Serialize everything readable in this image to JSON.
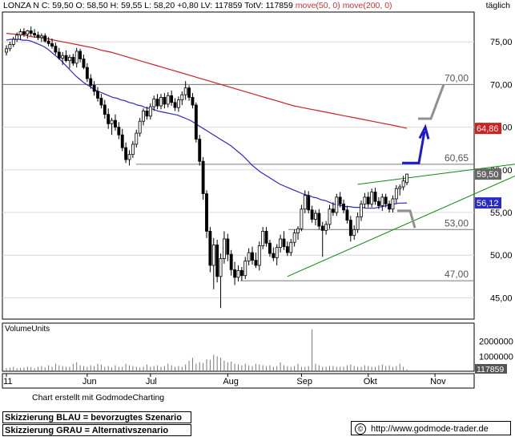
{
  "header": {
    "left": "LONZA N C: 59,50 O: 58,50 H: 59,55 L: 58,20 +0,80 LV: 117859 TotV: 117859",
    "ma_text": "move(50, 0) move(200, 0)",
    "right": "täglich"
  },
  "footer": {
    "credit": "Chart erstellt mit GodmodeCharting",
    "blue_note": "Skizzierung BLAU = bevorzugtes Szenario",
    "grey_note": "Skizzierung GRAU = Alternativszenario",
    "copyright_symbol": "©",
    "url": "http://www.godmode-trader.de"
  },
  "colors": {
    "candles": "#000000",
    "ma50": "#2a2ac8",
    "ma200": "#cc2222",
    "trendlines": "#118811",
    "blue_scenario": "#1a1ad0",
    "grey_scenario": "#909090",
    "price_badge": "#666666",
    "ma200_badge": "#cc2222",
    "ma50_badge": "#2a2ac8"
  },
  "chart_data": {
    "type": "candlestick",
    "x_ticks": [
      "'11",
      "Jun",
      "Jul",
      "Aug",
      "Sep",
      "Okt",
      "Nov"
    ],
    "y_ticks": [
      45,
      50,
      55,
      60,
      65,
      70,
      75
    ],
    "y_tick_labels": [
      "45,00",
      "50,00",
      "55,00",
      "60,00",
      "65,00",
      "70,00",
      "75,00"
    ],
    "ylim": [
      42.5,
      78.5
    ],
    "levels": [
      {
        "value": 70.0,
        "label": "70,00"
      },
      {
        "value": 60.65,
        "label": "60,65"
      },
      {
        "value": 53.0,
        "label": "53,00"
      },
      {
        "value": 47.0,
        "label": "47,00"
      }
    ],
    "last_values": [
      {
        "name": "close",
        "value": 59.5,
        "label": "59,50"
      },
      {
        "name": "ma200",
        "value": 64.86,
        "label": "64,86"
      },
      {
        "name": "ma50",
        "value": 56.12,
        "label": "56,12"
      }
    ],
    "ohlc": [
      [
        73.8,
        74.6,
        73.4,
        74.2
      ],
      [
        74.2,
        75.0,
        73.9,
        74.7
      ],
      [
        74.7,
        75.6,
        74.4,
        75.3
      ],
      [
        75.3,
        76.1,
        75.0,
        75.8
      ],
      [
        75.8,
        76.5,
        75.3,
        76.2
      ],
      [
        76.2,
        76.6,
        75.6,
        75.9
      ],
      [
        75.9,
        76.4,
        75.4,
        76.3
      ],
      [
        76.3,
        76.8,
        75.7,
        76.0
      ],
      [
        76.0,
        76.5,
        75.5,
        75.8
      ],
      [
        75.8,
        76.2,
        75.2,
        75.5
      ],
      [
        75.5,
        76.0,
        75.0,
        75.7
      ],
      [
        75.7,
        76.0,
        74.9,
        75.1
      ],
      [
        75.1,
        75.6,
        74.5,
        74.8
      ],
      [
        74.8,
        75.4,
        74.2,
        74.5
      ],
      [
        74.5,
        74.9,
        73.5,
        73.8
      ],
      [
        73.8,
        74.3,
        72.9,
        73.1
      ],
      [
        73.1,
        73.8,
        72.3,
        73.4
      ],
      [
        73.4,
        74.0,
        72.6,
        72.8
      ],
      [
        72.8,
        73.5,
        71.9,
        73.2
      ],
      [
        73.2,
        73.6,
        72.2,
        72.5
      ],
      [
        72.5,
        74.3,
        72.0,
        73.9
      ],
      [
        73.9,
        74.2,
        72.6,
        73.0
      ],
      [
        73.0,
        73.5,
        71.8,
        72.0
      ],
      [
        72.0,
        72.5,
        70.3,
        70.7
      ],
      [
        70.7,
        71.2,
        69.5,
        69.9
      ],
      [
        69.9,
        70.4,
        68.7,
        69.2
      ],
      [
        69.2,
        69.7,
        68.0,
        68.4
      ],
      [
        68.4,
        68.9,
        67.2,
        67.6
      ],
      [
        67.6,
        68.2,
        66.0,
        66.5
      ],
      [
        66.5,
        67.2,
        64.8,
        65.4
      ],
      [
        65.4,
        66.1,
        64.1,
        65.8
      ],
      [
        65.8,
        66.5,
        64.6,
        65.0
      ],
      [
        65.0,
        65.6,
        63.6,
        64.1
      ],
      [
        64.1,
        64.8,
        62.2,
        62.6
      ],
      [
        62.6,
        63.2,
        60.8,
        61.2
      ],
      [
        61.2,
        62.3,
        60.5,
        61.8
      ],
      [
        61.8,
        63.4,
        61.4,
        63.0
      ],
      [
        63.0,
        64.7,
        62.6,
        64.3
      ],
      [
        64.3,
        66.1,
        63.9,
        65.7
      ],
      [
        65.7,
        67.2,
        65.2,
        66.9
      ],
      [
        66.9,
        67.4,
        65.9,
        66.3
      ],
      [
        66.3,
        67.8,
        65.9,
        67.4
      ],
      [
        67.4,
        68.7,
        66.9,
        68.3
      ],
      [
        68.3,
        68.9,
        67.1,
        67.5
      ],
      [
        67.5,
        68.9,
        67.1,
        68.5
      ],
      [
        68.5,
        69.0,
        67.2,
        67.7
      ],
      [
        67.7,
        69.1,
        67.3,
        68.7
      ],
      [
        68.7,
        69.3,
        67.5,
        67.9
      ],
      [
        67.9,
        68.4,
        66.9,
        67.3
      ],
      [
        67.3,
        68.6,
        66.8,
        68.2
      ],
      [
        68.2,
        69.2,
        67.6,
        68.8
      ],
      [
        68.8,
        70.4,
        68.2,
        69.6
      ],
      [
        69.6,
        69.9,
        68.1,
        68.5
      ],
      [
        68.5,
        69.0,
        67.2,
        67.6
      ],
      [
        67.6,
        67.9,
        63.2,
        63.6
      ],
      [
        63.6,
        64.1,
        60.5,
        61.0
      ],
      [
        61.0,
        61.5,
        56.5,
        57.2
      ],
      [
        57.2,
        57.6,
        52.0,
        52.8
      ],
      [
        52.8,
        53.3,
        48.0,
        48.8
      ],
      [
        48.8,
        52.0,
        46.0,
        51.2
      ],
      [
        51.2,
        51.8,
        46.8,
        47.5
      ],
      [
        47.5,
        50.2,
        43.8,
        49.6
      ],
      [
        49.6,
        52.8,
        49.0,
        51.9
      ],
      [
        51.9,
        52.5,
        49.3,
        50.1
      ],
      [
        50.1,
        50.6,
        47.6,
        48.3
      ],
      [
        48.3,
        49.2,
        46.5,
        47.4
      ],
      [
        47.4,
        48.8,
        46.9,
        48.2
      ],
      [
        48.2,
        48.6,
        47.0,
        47.6
      ],
      [
        47.6,
        49.8,
        47.2,
        49.3
      ],
      [
        49.3,
        50.8,
        48.8,
        50.3
      ],
      [
        50.3,
        51.0,
        48.9,
        49.4
      ],
      [
        49.4,
        50.3,
        48.5,
        48.8
      ],
      [
        48.8,
        51.6,
        48.2,
        51.1
      ],
      [
        51.1,
        53.3,
        50.7,
        52.8
      ],
      [
        52.8,
        53.3,
        51.0,
        51.4
      ],
      [
        51.4,
        51.8,
        49.8,
        50.2
      ],
      [
        50.2,
        50.9,
        49.3,
        49.7
      ],
      [
        49.7,
        51.3,
        48.8,
        50.9
      ],
      [
        50.9,
        52.4,
        50.3,
        51.9
      ],
      [
        51.9,
        52.8,
        50.6,
        51.0
      ],
      [
        51.0,
        51.6,
        49.9,
        50.3
      ],
      [
        50.3,
        51.9,
        49.9,
        51.5
      ],
      [
        51.5,
        53.0,
        51.0,
        52.6
      ],
      [
        52.6,
        53.4,
        51.8,
        53.1
      ],
      [
        53.1,
        55.9,
        52.8,
        55.4
      ],
      [
        55.4,
        57.6,
        54.9,
        57.0
      ],
      [
        57.0,
        57.5,
        54.9,
        55.3
      ],
      [
        55.3,
        55.8,
        53.8,
        54.2
      ],
      [
        54.2,
        55.3,
        53.5,
        54.9
      ],
      [
        54.9,
        55.4,
        53.0,
        53.4
      ],
      [
        53.4,
        53.9,
        49.8,
        52.9
      ],
      [
        52.9,
        54.0,
        52.4,
        53.6
      ],
      [
        53.6,
        55.9,
        53.1,
        55.4
      ],
      [
        55.4,
        56.2,
        54.6,
        55.0
      ],
      [
        55.0,
        57.2,
        54.6,
        56.8
      ],
      [
        56.8,
        57.4,
        55.6,
        56.0
      ],
      [
        56.0,
        56.5,
        54.9,
        55.3
      ],
      [
        55.3,
        55.8,
        53.7,
        54.1
      ],
      [
        54.1,
        54.6,
        51.6,
        52.3
      ],
      [
        52.3,
        53.5,
        51.8,
        53.0
      ],
      [
        53.0,
        55.0,
        52.6,
        54.5
      ],
      [
        54.5,
        56.4,
        54.0,
        56.0
      ],
      [
        56.0,
        57.3,
        55.5,
        56.8
      ],
      [
        56.8,
        57.4,
        55.6,
        56.0
      ],
      [
        56.0,
        57.8,
        55.6,
        57.4
      ],
      [
        57.4,
        57.9,
        55.9,
        56.3
      ],
      [
        56.3,
        56.8,
        55.4,
        55.8
      ],
      [
        55.8,
        57.2,
        55.2,
        56.8
      ],
      [
        56.8,
        57.2,
        55.6,
        56.0
      ],
      [
        56.0,
        56.4,
        55.0,
        55.4
      ],
      [
        55.4,
        57.0,
        55.0,
        56.6
      ],
      [
        56.6,
        58.2,
        56.1,
        57.8
      ],
      [
        57.8,
        58.3,
        57.0,
        58.0
      ],
      [
        58.0,
        59.3,
        57.6,
        58.7
      ],
      [
        58.5,
        59.55,
        58.2,
        59.5
      ]
    ],
    "ma50": [
      75.2,
      75.3,
      75.3,
      75.3,
      75.2,
      75.2,
      75.1,
      74.9,
      74.7,
      74.5,
      74.2,
      73.8,
      73.4,
      73.0,
      72.5,
      72.0,
      71.5,
      71.0,
      70.6,
      70.2,
      69.9,
      69.6,
      69.3,
      69.1,
      68.9,
      68.7,
      68.5,
      68.4,
      68.2,
      68.1,
      67.9,
      67.8,
      67.6,
      67.5,
      67.3,
      67.2,
      67.1,
      66.9,
      66.8,
      66.7,
      66.6,
      66.5,
      66.4,
      66.2,
      66.0,
      65.8,
      65.5,
      65.2,
      64.9,
      64.6,
      64.3,
      64.0,
      63.7,
      63.4,
      63.1,
      62.8,
      62.4,
      62.0,
      61.6,
      61.1,
      60.6,
      60.2,
      59.8,
      59.5,
      59.2,
      58.9,
      58.6,
      58.3,
      58.1,
      57.9,
      57.7,
      57.5,
      57.3,
      57.1,
      57.0,
      56.8,
      56.7,
      56.5,
      56.4,
      56.2,
      56.0,
      55.9,
      55.8,
      55.7,
      55.7,
      55.6,
      55.6,
      55.6,
      55.5,
      55.5,
      55.5,
      55.6,
      55.7,
      55.8,
      55.9,
      56.0,
      56.1,
      56.1,
      56.12
    ],
    "ma200": [
      76.0,
      75.9,
      75.8,
      75.6,
      75.5,
      75.3,
      75.1,
      74.9,
      74.7,
      74.5,
      74.3,
      74.0,
      73.8,
      73.5,
      73.2,
      72.9,
      72.6,
      72.3,
      72.0,
      71.7,
      71.4,
      71.1,
      70.8,
      70.5,
      70.2,
      69.9,
      69.6,
      69.3,
      69.0,
      68.7,
      68.4,
      68.1,
      67.8,
      67.5,
      67.3,
      67.1,
      66.9,
      66.7,
      66.5,
      66.3,
      66.1,
      65.9,
      65.7,
      65.5,
      65.3,
      65.1,
      64.86
    ],
    "trend_upper": {
      "x": [
        100,
        155
      ],
      "y": [
        58.3,
        61.2
      ]
    },
    "trend_lower": {
      "x": [
        80,
        157
      ],
      "y": [
        47.5,
        61.5
      ]
    },
    "volume": {
      "label": "VolumeUnits",
      "y_tick_labels": [
        "2000000",
        "1000000"
      ],
      "last_label": "117859",
      "values": [
        0.2,
        0.25,
        0.3,
        0.2,
        0.22,
        0.25,
        0.3,
        0.28,
        0.2,
        0.3,
        0.35,
        0.25,
        0.4,
        0.3,
        0.5,
        0.4,
        0.35,
        0.3,
        0.3,
        0.5,
        0.6,
        0.4,
        0.35,
        0.3,
        0.4,
        0.35,
        0.5,
        0.45,
        0.3,
        0.35,
        0.25,
        0.4,
        0.3,
        0.3,
        0.5,
        0.4,
        0.35,
        0.3,
        0.25,
        0.3,
        0.45,
        0.3,
        0.35,
        0.4,
        0.3,
        0.35,
        0.5,
        0.4,
        0.3,
        0.35,
        0.3,
        0.45,
        0.7,
        0.9,
        0.5,
        0.6,
        0.55,
        0.8,
        0.75,
        1.1,
        1.0,
        0.9,
        0.7,
        0.6,
        0.65,
        0.5,
        0.45,
        0.4,
        0.5,
        0.4,
        0.35,
        0.5,
        0.45,
        0.4,
        0.35,
        0.4,
        0.3,
        0.35,
        0.6,
        0.4,
        0.35,
        0.3,
        0.35,
        0.5,
        0.3,
        0.3,
        0.35,
        2.8,
        0.5,
        0.4,
        0.3,
        0.3,
        0.35,
        0.35,
        0.3,
        0.3,
        0.3,
        0.4,
        0.45,
        0.35,
        0.3,
        0.3,
        0.4,
        0.35,
        0.3,
        0.3,
        0.4,
        0.45,
        0.35,
        0.4,
        0.3,
        0.35,
        0.5,
        0.3,
        0.12
      ]
    }
  }
}
